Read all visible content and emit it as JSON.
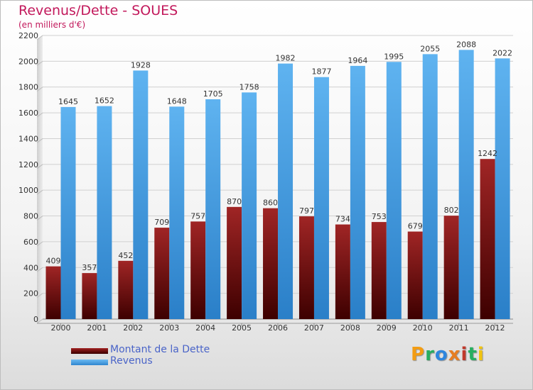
{
  "chart_data": {
    "type": "bar",
    "title": "Revenus/Dette - SOUES",
    "subtitle": "(en milliers d'€)",
    "categories": [
      "2000",
      "2001",
      "2002",
      "2003",
      "2004",
      "2005",
      "2006",
      "2007",
      "2008",
      "2009",
      "2010",
      "2011",
      "2012"
    ],
    "series": [
      {
        "name": "Montant de la Dette",
        "values": [
          409,
          357,
          452,
          709,
          757,
          870,
          860,
          797,
          734,
          753,
          679,
          802,
          1242
        ],
        "color": "#7a1010"
      },
      {
        "name": "Revenus",
        "values": [
          1645,
          1652,
          1928,
          1648,
          1705,
          1758,
          1982,
          1877,
          1964,
          1995,
          2055,
          2088,
          2022
        ],
        "color": "#4aa3e8"
      }
    ],
    "ylim": [
      0,
      2200
    ],
    "yticks": [
      0,
      200,
      400,
      600,
      800,
      1000,
      1200,
      1400,
      1600,
      1800,
      2000,
      2200
    ],
    "grid": true,
    "legend": "bottom-left"
  },
  "logo": {
    "letters": [
      "P",
      "r",
      "o",
      "x",
      "i",
      "t",
      "i"
    ],
    "colors": [
      "#f39c12",
      "#27ae60",
      "#2e86de",
      "#e67e22",
      "#c0392b",
      "#27ae60",
      "#f1c40f"
    ]
  }
}
